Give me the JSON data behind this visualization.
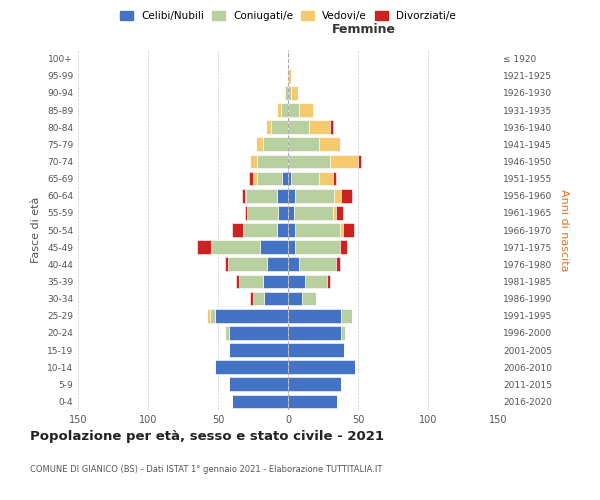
{
  "age_groups": [
    "0-4",
    "5-9",
    "10-14",
    "15-19",
    "20-24",
    "25-29",
    "30-34",
    "35-39",
    "40-44",
    "45-49",
    "50-54",
    "55-59",
    "60-64",
    "65-69",
    "70-74",
    "75-79",
    "80-84",
    "85-89",
    "90-94",
    "95-99",
    "100+"
  ],
  "birth_years": [
    "2016-2020",
    "2011-2015",
    "2006-2010",
    "2001-2005",
    "1996-2000",
    "1991-1995",
    "1986-1990",
    "1981-1985",
    "1976-1980",
    "1971-1975",
    "1966-1970",
    "1961-1965",
    "1956-1960",
    "1951-1955",
    "1946-1950",
    "1941-1945",
    "1936-1940",
    "1931-1935",
    "1926-1930",
    "1921-1925",
    "≤ 1920"
  ],
  "males": {
    "celibi": [
      40,
      42,
      52,
      42,
      42,
      52,
      17,
      18,
      15,
      20,
      8,
      7,
      8,
      4,
      0,
      0,
      0,
      0,
      0,
      0,
      0
    ],
    "coniugati": [
      0,
      0,
      0,
      0,
      3,
      4,
      8,
      17,
      28,
      35,
      24,
      22,
      22,
      18,
      22,
      18,
      12,
      5,
      2,
      0,
      0
    ],
    "vedovi": [
      0,
      0,
      0,
      0,
      0,
      2,
      0,
      0,
      0,
      0,
      0,
      0,
      1,
      3,
      5,
      5,
      4,
      3,
      1,
      0,
      0
    ],
    "divorziati": [
      0,
      0,
      0,
      0,
      0,
      0,
      2,
      2,
      2,
      10,
      8,
      2,
      2,
      3,
      0,
      0,
      0,
      0,
      0,
      0,
      0
    ]
  },
  "females": {
    "nubili": [
      35,
      38,
      48,
      40,
      38,
      38,
      10,
      12,
      8,
      5,
      5,
      4,
      5,
      2,
      0,
      0,
      0,
      0,
      0,
      0,
      0
    ],
    "coniugate": [
      0,
      0,
      0,
      0,
      3,
      8,
      10,
      16,
      26,
      32,
      32,
      28,
      28,
      20,
      30,
      22,
      15,
      8,
      2,
      0,
      0
    ],
    "vedove": [
      0,
      0,
      0,
      0,
      0,
      0,
      0,
      0,
      0,
      0,
      2,
      2,
      5,
      10,
      20,
      15,
      15,
      10,
      5,
      2,
      0
    ],
    "divorziate": [
      0,
      0,
      0,
      0,
      0,
      0,
      0,
      2,
      3,
      5,
      8,
      5,
      8,
      2,
      2,
      0,
      2,
      0,
      0,
      0,
      0
    ]
  },
  "colors": {
    "celibi": "#4472c4",
    "coniugati": "#b8cfa0",
    "vedovi": "#f5c96e",
    "divorziati": "#cc2222"
  },
  "title": "Popolazione per età, sesso e stato civile - 2021",
  "subtitle": "COMUNE DI GIANICO (BS) - Dati ISTAT 1° gennaio 2021 - Elaborazione TUTTITALIA.IT",
  "xlabel_right": "Femmine",
  "ylabel_left": "Fasce di età",
  "ylabel_right": "Anni di nascita",
  "xlim": 150,
  "background_color": "#ffffff",
  "grid_color": "#cccccc"
}
